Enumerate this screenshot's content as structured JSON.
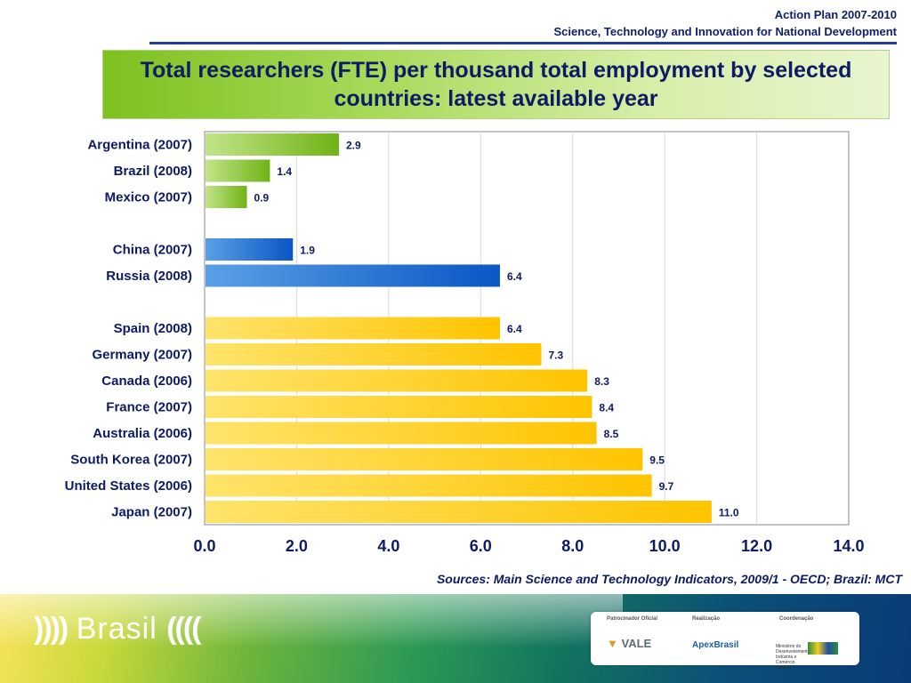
{
  "header": {
    "line1": "Action Plan 2007-2010",
    "line2": "Science, Technology and Innovation for National Development"
  },
  "chart_data": {
    "type": "bar",
    "orientation": "horizontal",
    "title": "Total researchers (FTE) per thousand total employment by selected countries: latest available year",
    "xlim": [
      0,
      14
    ],
    "xticks": [
      "0.0",
      "2.0",
      "4.0",
      "6.0",
      "8.0",
      "10.0",
      "12.0",
      "14.0"
    ],
    "grid": true,
    "groups": [
      {
        "color": "#8dc63f",
        "items": [
          {
            "label": "Argentina (2007)",
            "value": 2.9
          },
          {
            "label": "Brazil (2008)",
            "value": 1.4
          },
          {
            "label": "Mexico (2007)",
            "value": 0.9
          }
        ]
      },
      {
        "color": "#1f6fcf",
        "items": [
          {
            "label": "China (2007)",
            "value": 1.9
          },
          {
            "label": "Russia (2008)",
            "value": 6.4
          }
        ]
      },
      {
        "color": "#ffcc00",
        "items": [
          {
            "label": "Spain (2008)",
            "value": 6.4
          },
          {
            "label": "Germany (2007)",
            "value": 7.3
          },
          {
            "label": "Canada (2006)",
            "value": 8.3
          },
          {
            "label": "France (2007)",
            "value": 8.4
          },
          {
            "label": "Australia (2006)",
            "value": 8.5
          },
          {
            "label": "South Korea (2007)",
            "value": 9.5
          },
          {
            "label": "United States (2006)",
            "value": 9.7
          },
          {
            "label": "Japan (2007)",
            "value": 11.0
          }
        ]
      }
    ]
  },
  "source": "Sources: Main Science and Technology Indicators, 2009/1 - OECD; Brazil: MCT",
  "footer": {
    "brand": "Brasil",
    "sponsor_caption": "Patrocinador Oficial",
    "realization_caption": "Realização",
    "coordination_caption": "Coordenação",
    "sponsor_logo": "VALE",
    "realization_logo": "ApexBrasil",
    "coordination_logo": "Ministério do Desenvolvimento, Indústria e Comércio Exterior"
  }
}
